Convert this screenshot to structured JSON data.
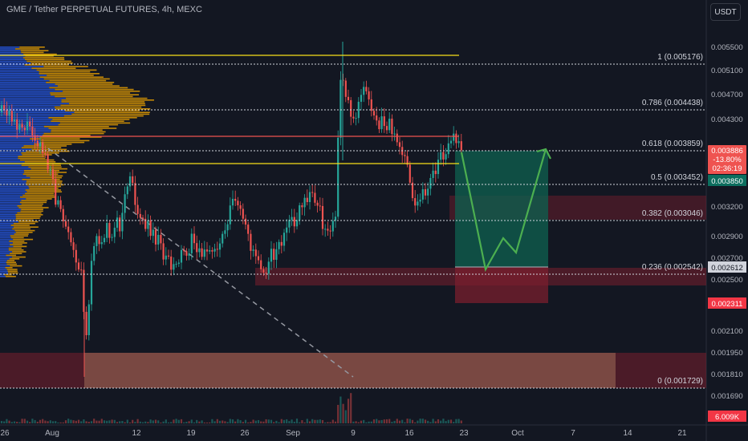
{
  "header": {
    "title": "GME / Tether PERPETUAL FUTURES, 4h, MEXC",
    "currency": "USDT"
  },
  "price_axis": {
    "ticks": [
      "0.005500",
      "0.005100",
      "0.004700",
      "0.004300",
      "0.003850",
      "0.003200",
      "0.002900",
      "0.002700",
      "0.002500",
      "0.002100",
      "0.001950",
      "0.001810",
      "0.001690"
    ]
  },
  "time_axis": {
    "ticks": [
      "26",
      "Aug",
      "12",
      "19",
      "26",
      "Sep",
      "9",
      "16",
      "23",
      "Oct",
      "7",
      "14",
      "21"
    ]
  },
  "fib_levels": [
    {
      "label": "1 (0.005176)",
      "value": 0.005176
    },
    {
      "label": "0.786 (0.004438)",
      "value": 0.004438
    },
    {
      "label": "0.618 (0.003859)",
      "value": 0.003859
    },
    {
      "label": "0.5 (0.003452)",
      "value": 0.003452
    },
    {
      "label": "0.382 (0.003046)",
      "value": 0.003046
    },
    {
      "label": "0.236 (0.002542)",
      "value": 0.002542
    },
    {
      "label": "0 (0.001729)",
      "value": 0.001729
    }
  ],
  "price_tags": {
    "current_price": "0.003886",
    "change": "-13.80%",
    "countdown": "02:36:19",
    "target": "0.003850",
    "entry": "0.002612",
    "stop": "0.002311",
    "volume": "6.009K"
  },
  "colors": {
    "bull": "#26a69a",
    "bear": "#ef5350",
    "fib_yellow": "#f7e018",
    "fib_red": "#ef5350",
    "projection": "#4caf50",
    "profile_orange": "#f0a500",
    "profile_blue": "#2962ff"
  }
}
